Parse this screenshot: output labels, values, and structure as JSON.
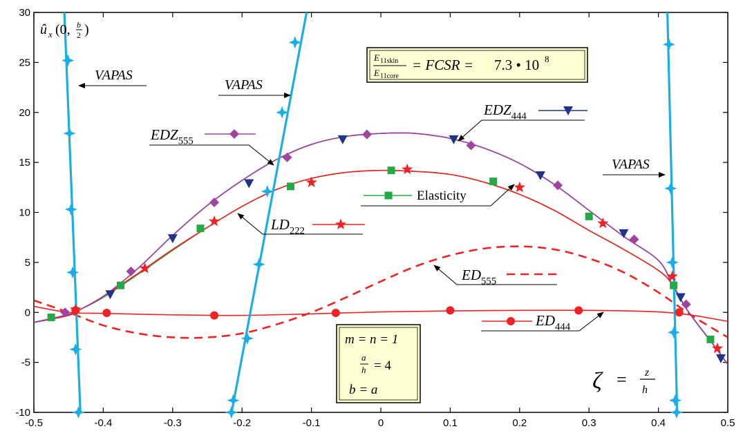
{
  "chart_data": {
    "type": "line",
    "xlim": [
      -0.5,
      0.5
    ],
    "ylim": [
      -10,
      30
    ],
    "x_ticks": [
      "-0.5",
      "-0.4",
      "-0.3",
      "-0.2",
      "-0.1",
      "0",
      "0.1",
      "0.2",
      "0.3",
      "0.4",
      "0.5"
    ],
    "y_ticks": [
      "30",
      "25",
      "20",
      "15",
      "10",
      "5",
      "0",
      "-5",
      "-10"
    ],
    "ylabel": "û_x(0, b/2)",
    "xlabel": "ζ = z/h",
    "annotation_box": "E11skin / E11core = FCSR = 7.3 • 10^8",
    "params_box": [
      "m = n = 1",
      "a/h = 4",
      "b = a"
    ],
    "grid": false,
    "series": [
      {
        "name": "Elasticity",
        "color": "#22aa44",
        "marker": "square",
        "x": [
          -0.5,
          -0.45,
          -0.43,
          -0.4,
          -0.35,
          -0.3,
          -0.25,
          -0.2,
          -0.15,
          -0.1,
          -0.05,
          0,
          0.05,
          0.1,
          0.15,
          0.2,
          0.25,
          0.3,
          0.35,
          0.4,
          0.42,
          0.44,
          0.46,
          0.48,
          0.5
        ],
        "y": [
          -1.0,
          -0.3,
          0.4,
          1.5,
          3.8,
          6.2,
          8.5,
          10.6,
          12.3,
          13.4,
          14.0,
          14.2,
          14.1,
          13.8,
          13.0,
          11.8,
          10.2,
          8.2,
          6.3,
          4.2,
          2.8,
          0.4,
          -1.5,
          -3.3,
          -5.2
        ],
        "marker_x": [
          -0.475,
          -0.375,
          -0.26,
          -0.13,
          0.015,
          0.162,
          0.3,
          0.422,
          0.475
        ],
        "marker_y": [
          -0.5,
          2.7,
          8.4,
          12.6,
          14.2,
          13.1,
          9.6,
          2.7,
          -2.7
        ]
      },
      {
        "name": "LD222",
        "color": "#ee2222",
        "marker": "star",
        "x": [
          -0.5,
          -0.45,
          -0.43,
          -0.4,
          -0.35,
          -0.3,
          -0.25,
          -0.2,
          -0.15,
          -0.1,
          -0.05,
          0,
          0.05,
          0.1,
          0.15,
          0.2,
          0.25,
          0.3,
          0.35,
          0.4,
          0.42,
          0.44,
          0.46,
          0.48,
          0.5
        ],
        "y": [
          -1.0,
          -0.3,
          0.4,
          1.6,
          3.9,
          6.3,
          8.5,
          10.6,
          12.3,
          13.4,
          14.0,
          14.2,
          14.1,
          13.8,
          13.0,
          11.8,
          10.2,
          8.2,
          6.3,
          4.2,
          2.8,
          0.4,
          -1.5,
          -3.3,
          -5.2
        ],
        "marker_x": [
          -0.44,
          -0.34,
          -0.24,
          -0.1,
          0.038,
          0.2,
          0.32,
          0.42,
          0.485
        ],
        "marker_y": [
          0.3,
          4.4,
          9.1,
          13.0,
          14.3,
          12.5,
          8.9,
          3.6,
          -3.6
        ]
      },
      {
        "name": "EDZ444",
        "color": "#22338a",
        "marker": "triangle-down",
        "x": [
          -0.5,
          -0.45,
          -0.43,
          -0.4,
          -0.35,
          -0.3,
          -0.25,
          -0.2,
          -0.15,
          -0.1,
          -0.05,
          0,
          0.05,
          0.1,
          0.15,
          0.2,
          0.25,
          0.3,
          0.35,
          0.4,
          0.42,
          0.44,
          0.46,
          0.48,
          0.5
        ],
        "y": [
          -1.0,
          -0.2,
          0.4,
          1.6,
          4.4,
          7.7,
          10.7,
          13.2,
          15.3,
          16.8,
          17.6,
          17.9,
          17.9,
          17.4,
          16.4,
          14.9,
          12.8,
          10.2,
          7.6,
          5.2,
          2.8,
          0.4,
          -1.5,
          -3.3,
          -5.2
        ],
        "marker_x": [
          -0.39,
          -0.3,
          -0.19,
          -0.055,
          0.105,
          0.23,
          0.35,
          0.432,
          0.49
        ],
        "marker_y": [
          1.8,
          7.4,
          12.9,
          17.3,
          17.3,
          13.7,
          7.9,
          1.5,
          -4.6
        ]
      },
      {
        "name": "EDZ555",
        "color": "#a044a0",
        "marker": "diamond",
        "x": [
          -0.5,
          -0.45,
          -0.43,
          -0.4,
          -0.35,
          -0.3,
          -0.25,
          -0.2,
          -0.15,
          -0.1,
          -0.05,
          0,
          0.05,
          0.1,
          0.15,
          0.2,
          0.25,
          0.3,
          0.35,
          0.4,
          0.42,
          0.44,
          0.46,
          0.48,
          0.5
        ],
        "y": [
          -1.0,
          -0.2,
          0.4,
          1.6,
          4.4,
          7.7,
          10.7,
          13.2,
          15.3,
          16.8,
          17.6,
          17.9,
          17.9,
          17.4,
          16.4,
          14.9,
          12.8,
          10.2,
          7.6,
          5.2,
          2.8,
          0.4,
          -1.5,
          -3.3,
          -5.2
        ],
        "marker_x": [
          -0.455,
          -0.36,
          -0.24,
          -0.135,
          -0.02,
          0.13,
          0.255,
          0.365,
          0.44
        ],
        "marker_y": [
          0.0,
          4.1,
          11.0,
          15.5,
          17.8,
          16.7,
          12.7,
          7.3,
          0.8
        ]
      },
      {
        "name": "ED444",
        "color": "#ee2222",
        "marker": "circle",
        "x": [
          -0.5,
          -0.45,
          -0.4,
          -0.3,
          -0.2,
          -0.1,
          0,
          0.1,
          0.2,
          0.3,
          0.4,
          0.45,
          0.5
        ],
        "y": [
          0.6,
          0.0,
          -0.1,
          -0.25,
          -0.3,
          -0.15,
          0.05,
          0.15,
          0.2,
          0.2,
          0.05,
          -0.3,
          -0.9
        ],
        "marker_x": [
          -0.44,
          -0.395,
          -0.24,
          -0.065,
          0.1,
          0.285,
          0.43
        ],
        "marker_y": [
          0.2,
          -0.05,
          -0.3,
          -0.05,
          0.2,
          0.2,
          0.0
        ]
      },
      {
        "name": "ED555",
        "color": "#ee2222",
        "marker": "none",
        "dash": true,
        "x": [
          -0.5,
          -0.45,
          -0.4,
          -0.35,
          -0.3,
          -0.25,
          -0.2,
          -0.15,
          -0.1,
          -0.05,
          0,
          0.05,
          0.1,
          0.15,
          0.2,
          0.25,
          0.3,
          0.35,
          0.4,
          0.45,
          0.5
        ],
        "y": [
          1.2,
          0.0,
          -1.3,
          -2.1,
          -2.5,
          -2.5,
          -2.1,
          -1.2,
          0.0,
          1.5,
          3.1,
          4.6,
          5.7,
          6.4,
          6.6,
          6.3,
          5.4,
          4.0,
          2.0,
          -0.4,
          -2.5
        ],
        "marker_x": [],
        "marker_y": []
      },
      {
        "name": "VAPAS",
        "color": "#1aaee6",
        "marker": "star4",
        "x": [
          -0.456,
          -0.433
        ],
        "y": [
          30,
          -10
        ],
        "marker_x": [
          -0.4509,
          -0.4487,
          -0.4464,
          -0.4441,
          -0.4399,
          -0.4358
        ],
        "marker_y": [
          25.2,
          17.9,
          10.3,
          4.0,
          -3.7,
          -10
        ],
        "group": 1
      },
      {
        "name": "VAPAS",
        "color": "#1aaee6",
        "marker": "star4",
        "x": [
          -0.215,
          -0.107
        ],
        "y": [
          -10,
          30
        ],
        "marker_x": [
          -0.2153,
          -0.2127,
          -0.1924,
          -0.1756,
          -0.1636,
          -0.1423,
          -0.1237
        ],
        "marker_y": [
          -10,
          -8.8,
          -2.6,
          4.8,
          12.1,
          20.0,
          27.0
        ],
        "group": 2
      },
      {
        "name": "VAPAS",
        "color": "#1aaee6",
        "marker": "star4",
        "x": [
          0.413,
          0.427
        ],
        "y": [
          30,
          -10
        ],
        "marker_x": [
          0.4152,
          0.4176,
          0.42,
          0.4222,
          0.4242,
          0.4262
        ],
        "marker_y": [
          26.8,
          12.4,
          5.0,
          -2.0,
          -8.8,
          -10
        ],
        "group": 3
      }
    ],
    "labels": {
      "vapas_1": "VAPAS",
      "vapas_2": "VAPAS",
      "vapas_3": "VAPAS",
      "edz555": "EDZ555",
      "edz444": "EDZ444",
      "elasticity": "Elasticity",
      "ld222": "LD222",
      "ed555": "ED555",
      "ed444": "ED444"
    }
  }
}
